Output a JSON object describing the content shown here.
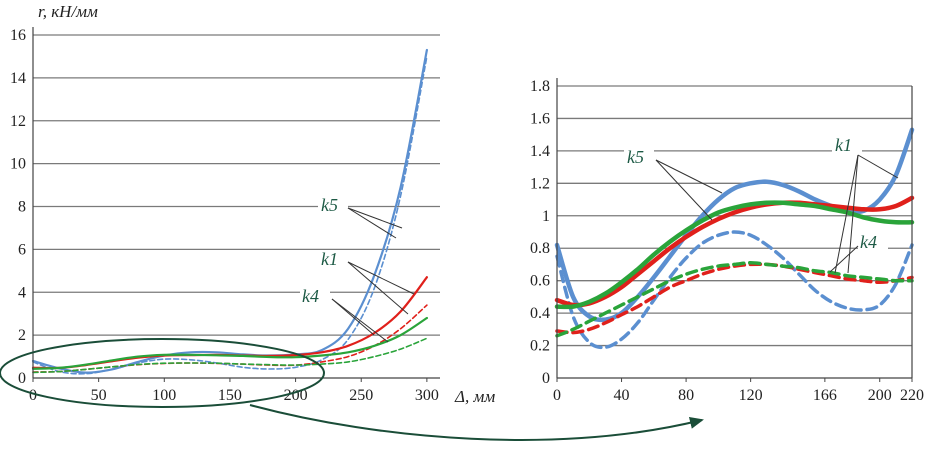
{
  "chart_data": [
    {
      "type": "line",
      "name": "overview",
      "ylabel": "r, кН/мм",
      "xlabel": "Δ, мм",
      "xlim": [
        0,
        310
      ],
      "ylim": [
        0,
        16
      ],
      "x_ticks": [
        "0",
        "50",
        "100",
        "150",
        "200",
        "250",
        "300"
      ],
      "y_ticks": [
        "0",
        "2",
        "4",
        "6",
        "8",
        "10",
        "12",
        "14",
        "16"
      ],
      "grid": "horizontal",
      "annotations": [
        "k5",
        "k1",
        "k4"
      ],
      "series": [
        {
          "name": "k5",
          "style": "solid",
          "color": "#5b8fd0",
          "x": [
            0,
            20,
            40,
            60,
            80,
            100,
            120,
            140,
            160,
            180,
            200,
            220,
            240,
            260,
            280,
            300
          ],
          "y": [
            0.8,
            0.45,
            0.25,
            0.4,
            0.75,
            1.05,
            1.2,
            1.2,
            1.1,
            1.05,
            1.1,
            1.3,
            2.3,
            4.8,
            8.9,
            15.3
          ]
        },
        {
          "name": "k5 (dashed)",
          "style": "dashed",
          "color": "#5b8fd0",
          "x": [
            0,
            20,
            40,
            60,
            80,
            100,
            120,
            140,
            160,
            180,
            200,
            220,
            240,
            260,
            280,
            300
          ],
          "y": [
            0.75,
            0.3,
            0.2,
            0.4,
            0.7,
            0.88,
            0.85,
            0.7,
            0.5,
            0.42,
            0.5,
            0.85,
            1.8,
            4.2,
            8.5,
            15.0
          ]
        },
        {
          "name": "k1",
          "style": "solid",
          "color": "#e0201b",
          "x": [
            0,
            20,
            40,
            60,
            80,
            100,
            120,
            140,
            160,
            180,
            200,
            220,
            240,
            260,
            280,
            300
          ],
          "y": [
            0.48,
            0.47,
            0.6,
            0.78,
            0.95,
            1.05,
            1.07,
            1.08,
            1.05,
            1.03,
            1.07,
            1.2,
            1.5,
            2.1,
            3.1,
            4.7
          ]
        },
        {
          "name": "k1 (dashed)",
          "style": "dashed",
          "color": "#e0201b",
          "x": [
            0,
            20,
            40,
            60,
            80,
            100,
            120,
            140,
            160,
            180,
            200,
            220,
            240,
            260,
            280,
            300
          ],
          "y": [
            0.28,
            0.3,
            0.4,
            0.52,
            0.62,
            0.68,
            0.7,
            0.68,
            0.65,
            0.6,
            0.6,
            0.75,
            1.0,
            1.5,
            2.3,
            3.4
          ]
        },
        {
          "name": "k4",
          "style": "solid",
          "color": "#2aa43a",
          "x": [
            0,
            20,
            40,
            60,
            80,
            100,
            120,
            140,
            160,
            180,
            200,
            220,
            240,
            260,
            280,
            300
          ],
          "y": [
            0.43,
            0.47,
            0.62,
            0.82,
            1.0,
            1.08,
            1.08,
            1.06,
            1.03,
            0.98,
            0.97,
            1.05,
            1.2,
            1.5,
            2.0,
            2.8
          ]
        },
        {
          "name": "k4 (dashed)",
          "style": "dashed",
          "color": "#2aa43a",
          "x": [
            0,
            20,
            40,
            60,
            80,
            100,
            120,
            140,
            160,
            180,
            200,
            220,
            240,
            260,
            280,
            300
          ],
          "y": [
            0.26,
            0.3,
            0.4,
            0.52,
            0.63,
            0.69,
            0.7,
            0.69,
            0.65,
            0.62,
            0.6,
            0.65,
            0.75,
            1.0,
            1.35,
            1.85
          ]
        }
      ]
    },
    {
      "type": "line",
      "name": "zoom",
      "xlim": [
        0,
        220
      ],
      "ylim": [
        0,
        1.8
      ],
      "x_ticks": [
        "0",
        "40",
        "80",
        "120",
        "166",
        "200",
        "220"
      ],
      "y_ticks": [
        "0",
        "0.2",
        "0.4",
        "0.6",
        "0.8",
        "1",
        "1.2",
        "1.4",
        "1.6",
        "1.8"
      ],
      "grid": "horizontal",
      "annotations": [
        "k5",
        "k1",
        "k4"
      ],
      "series": [
        {
          "name": "k5",
          "style": "solid",
          "color": "#5b8fd0",
          "x": [
            0,
            10,
            20,
            30,
            40,
            50,
            60,
            70,
            80,
            90,
            100,
            110,
            120,
            130,
            140,
            150,
            160,
            170,
            180,
            190,
            200,
            210,
            220
          ],
          "y": [
            0.82,
            0.5,
            0.38,
            0.36,
            0.4,
            0.5,
            0.62,
            0.75,
            0.88,
            1.0,
            1.1,
            1.17,
            1.2,
            1.21,
            1.19,
            1.15,
            1.1,
            1.06,
            1.03,
            1.03,
            1.1,
            1.25,
            1.53
          ]
        },
        {
          "name": "k5 (dashed)",
          "style": "dashed",
          "color": "#5b8fd0",
          "x": [
            0,
            10,
            20,
            30,
            40,
            50,
            60,
            70,
            80,
            90,
            100,
            110,
            120,
            130,
            140,
            150,
            160,
            170,
            180,
            190,
            200,
            210,
            220
          ],
          "y": [
            0.75,
            0.38,
            0.22,
            0.19,
            0.24,
            0.34,
            0.48,
            0.62,
            0.74,
            0.83,
            0.88,
            0.9,
            0.88,
            0.82,
            0.74,
            0.64,
            0.54,
            0.47,
            0.43,
            0.42,
            0.45,
            0.58,
            0.82
          ]
        },
        {
          "name": "k1",
          "style": "solid",
          "color": "#e0201b",
          "x": [
            0,
            10,
            20,
            30,
            40,
            50,
            60,
            70,
            80,
            90,
            100,
            110,
            120,
            130,
            140,
            150,
            160,
            170,
            180,
            190,
            200,
            210,
            220
          ],
          "y": [
            0.48,
            0.45,
            0.46,
            0.5,
            0.56,
            0.64,
            0.72,
            0.8,
            0.87,
            0.93,
            0.98,
            1.02,
            1.05,
            1.07,
            1.08,
            1.08,
            1.07,
            1.06,
            1.05,
            1.04,
            1.04,
            1.06,
            1.11
          ]
        },
        {
          "name": "k1 (dashed)",
          "style": "dashed",
          "color": "#e0201b",
          "x": [
            0,
            10,
            20,
            30,
            40,
            50,
            60,
            70,
            80,
            90,
            100,
            110,
            120,
            130,
            140,
            150,
            160,
            170,
            180,
            190,
            200,
            210,
            220
          ],
          "y": [
            0.29,
            0.28,
            0.3,
            0.34,
            0.39,
            0.44,
            0.5,
            0.56,
            0.6,
            0.64,
            0.67,
            0.69,
            0.7,
            0.7,
            0.69,
            0.67,
            0.65,
            0.63,
            0.61,
            0.6,
            0.59,
            0.6,
            0.62
          ]
        },
        {
          "name": "k4",
          "style": "solid",
          "color": "#2aa43a",
          "x": [
            0,
            10,
            20,
            30,
            40,
            50,
            60,
            70,
            80,
            90,
            100,
            110,
            120,
            130,
            140,
            150,
            160,
            170,
            180,
            190,
            200,
            210,
            220
          ],
          "y": [
            0.44,
            0.44,
            0.47,
            0.52,
            0.59,
            0.67,
            0.76,
            0.84,
            0.91,
            0.97,
            1.02,
            1.05,
            1.07,
            1.08,
            1.08,
            1.07,
            1.06,
            1.04,
            1.02,
            0.99,
            0.97,
            0.96,
            0.96
          ]
        },
        {
          "name": "k4 (dashed)",
          "style": "dashed",
          "color": "#2aa43a",
          "x": [
            0,
            10,
            20,
            30,
            40,
            50,
            60,
            70,
            80,
            90,
            100,
            110,
            120,
            130,
            140,
            150,
            160,
            170,
            180,
            190,
            200,
            210,
            220
          ],
          "y": [
            0.26,
            0.3,
            0.35,
            0.4,
            0.45,
            0.5,
            0.55,
            0.6,
            0.64,
            0.67,
            0.69,
            0.7,
            0.71,
            0.7,
            0.69,
            0.68,
            0.66,
            0.65,
            0.63,
            0.62,
            0.61,
            0.6,
            0.6
          ]
        }
      ]
    }
  ]
}
